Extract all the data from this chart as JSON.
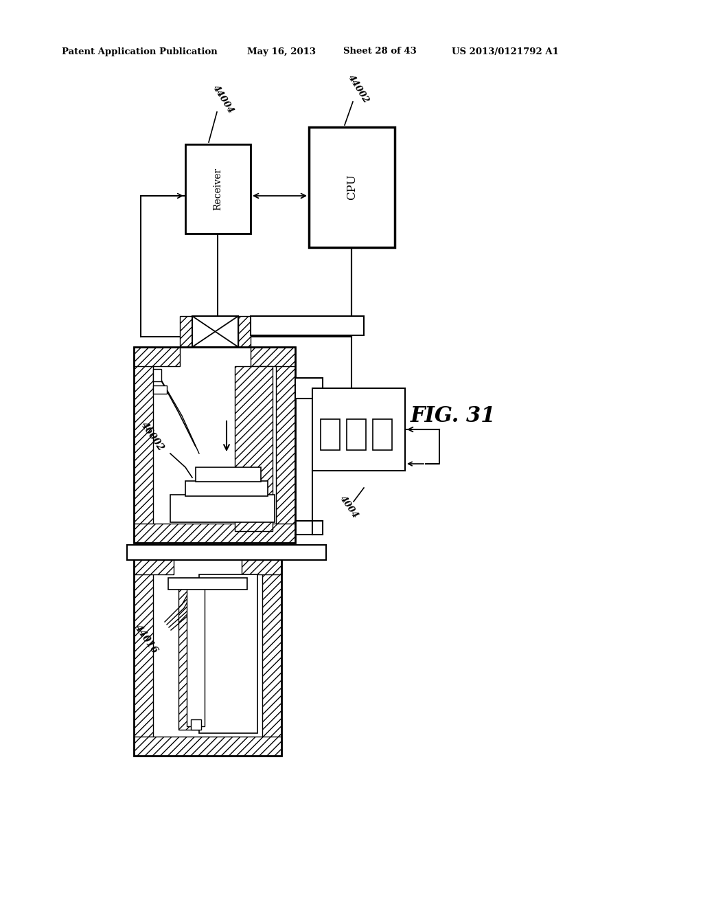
{
  "bg_color": "#ffffff",
  "header_text": "Patent Application Publication",
  "header_date": "May 16, 2013",
  "header_sheet": "Sheet 28 of 43",
  "header_patent": "US 2013/0121792 A1",
  "fig_label": "FIG. 31",
  "label_44004": "44004",
  "label_44002": "44002",
  "label_46002": "46002",
  "label_4004": "4004",
  "label_44016": "44016"
}
